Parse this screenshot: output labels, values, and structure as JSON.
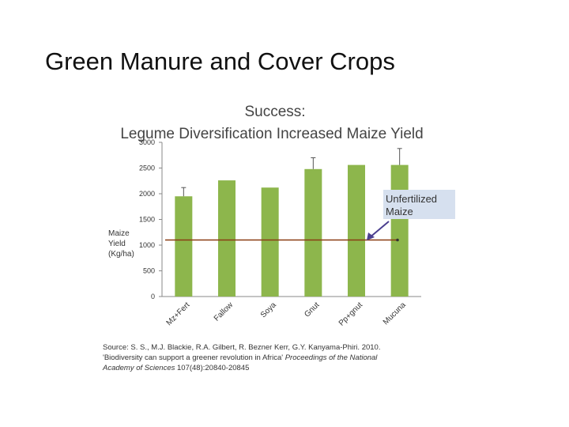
{
  "slide": {
    "title": "Green Manure and Cover Crops"
  },
  "chart_data": {
    "type": "bar",
    "title": "Success:",
    "subtitle": "Legume Diversification Increased Maize Yield",
    "ylabel_lines": [
      "Maize",
      "Yield",
      "(Kg/ha)"
    ],
    "categories": [
      "Mz+Fert",
      "Fallow",
      "Soya",
      "Gnut",
      "Pp+gnut",
      "Mucuna"
    ],
    "values": [
      1950,
      2260,
      2120,
      2480,
      2560,
      2560
    ],
    "error_tops": [
      2120,
      null,
      null,
      2700,
      null,
      2880
    ],
    "ylim": [
      0,
      3000
    ],
    "yticks": [
      0,
      500,
      1000,
      1500,
      2000,
      2500,
      3000
    ],
    "grid": false,
    "bar_color": "#8db64c",
    "reference_line": {
      "value": 1100,
      "color": "#8a3c12"
    },
    "annotation": {
      "lines": [
        "Unfertilized",
        "Maize"
      ],
      "bg": "#d6e0ef",
      "arrow_color": "#4b3f8f"
    }
  },
  "source": {
    "line1": "Source: S. S., M.J. Blackie, R.A. Gilbert, R. Bezner Kerr, G.Y. Kanyama-Phiri. 2010.",
    "line2_plain": "'Biodiversity can support a greener revolution in Africa'",
    "line2_italic": "Proceedings of the National",
    "line3_italic": "Academy of Sciences",
    "line3_plain": "107(48):20840-20845"
  }
}
